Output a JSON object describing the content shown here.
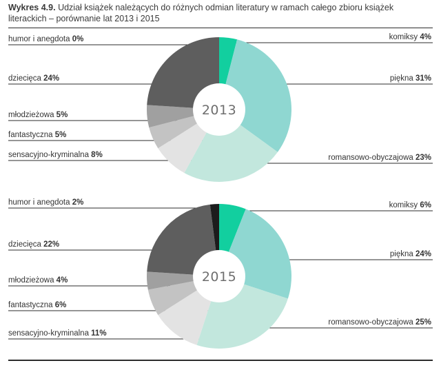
{
  "figure": {
    "label": "Wykres 4.9.",
    "title": "Udział książek należących do różnych odmian literatury w ramach całego zbioru książek literackich – porównanie lat 2013 i 2015"
  },
  "chart_data": [
    {
      "type": "pie",
      "style": "donut",
      "center_label": "2013",
      "slices": [
        {
          "name": "humor i anegdota",
          "value": 0,
          "value_label": "0%",
          "color": "#1c1c1c",
          "side": "left"
        },
        {
          "name": "komiksy",
          "value": 4,
          "value_label": "4%",
          "color": "#12cf9f",
          "side": "right"
        },
        {
          "name": "piękna",
          "value": 31,
          "value_label": "31%",
          "color": "#8fd7d1",
          "side": "right"
        },
        {
          "name": "romansowo-obyczajowa",
          "value": 23,
          "value_label": "23%",
          "color": "#c2e7dd",
          "side": "right"
        },
        {
          "name": "sensacyjno-kryminalna",
          "value": 8,
          "value_label": "8%",
          "color": "#e3e3e3",
          "side": "left"
        },
        {
          "name": "fantastyczna",
          "value": 5,
          "value_label": "5%",
          "color": "#c3c3c3",
          "side": "left"
        },
        {
          "name": "młodzieżowa",
          "value": 5,
          "value_label": "5%",
          "color": "#a0a0a0",
          "side": "left"
        },
        {
          "name": "dziecięca",
          "value": 24,
          "value_label": "24%",
          "color": "#5e5e5e",
          "side": "left"
        }
      ]
    },
    {
      "type": "pie",
      "style": "donut",
      "center_label": "2015",
      "slices": [
        {
          "name": "komiksy",
          "value": 6,
          "value_label": "6%",
          "color": "#12cf9f",
          "side": "right"
        },
        {
          "name": "piękna",
          "value": 24,
          "value_label": "24%",
          "color": "#8fd7d1",
          "side": "right"
        },
        {
          "name": "romansowo-obyczajowa",
          "value": 25,
          "value_label": "25%",
          "color": "#c2e7dd",
          "side": "right"
        },
        {
          "name": "sensacyjno-kryminalna",
          "value": 11,
          "value_label": "11%",
          "color": "#e3e3e3",
          "side": "left"
        },
        {
          "name": "fantastyczna",
          "value": 6,
          "value_label": "6%",
          "color": "#c3c3c3",
          "side": "left"
        },
        {
          "name": "młodzieżowa",
          "value": 4,
          "value_label": "4%",
          "color": "#a0a0a0",
          "side": "left"
        },
        {
          "name": "dziecięca",
          "value": 22,
          "value_label": "22%",
          "color": "#5e5e5e",
          "side": "left"
        },
        {
          "name": "humor i anegdota",
          "value": 2,
          "value_label": "2%",
          "color": "#1c1c1c",
          "side": "left"
        }
      ]
    }
  ]
}
